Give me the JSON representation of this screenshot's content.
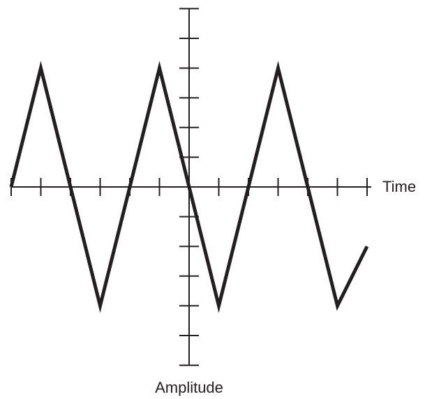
{
  "chart_data": {
    "type": "line",
    "title": "",
    "xlabel": "Time",
    "ylabel": "Amplitude",
    "xlim": [
      -6,
      6
    ],
    "ylim": [
      -6,
      6
    ],
    "x_ticks": [
      -6,
      -5,
      -4,
      -3,
      -2,
      -1,
      1,
      2,
      3,
      4,
      5,
      6
    ],
    "y_ticks": [
      -6,
      -5,
      -4,
      -3,
      -2,
      -1,
      1,
      2,
      3,
      4,
      5,
      6
    ],
    "grid": false,
    "series": [
      {
        "x": [
          -6,
          -5,
          -3,
          -1,
          1,
          3,
          5,
          6
        ],
        "y": [
          0,
          4,
          -4,
          4,
          -4,
          4,
          -4,
          -2
        ]
      }
    ],
    "colors": {
      "ink": "#231f20"
    }
  }
}
